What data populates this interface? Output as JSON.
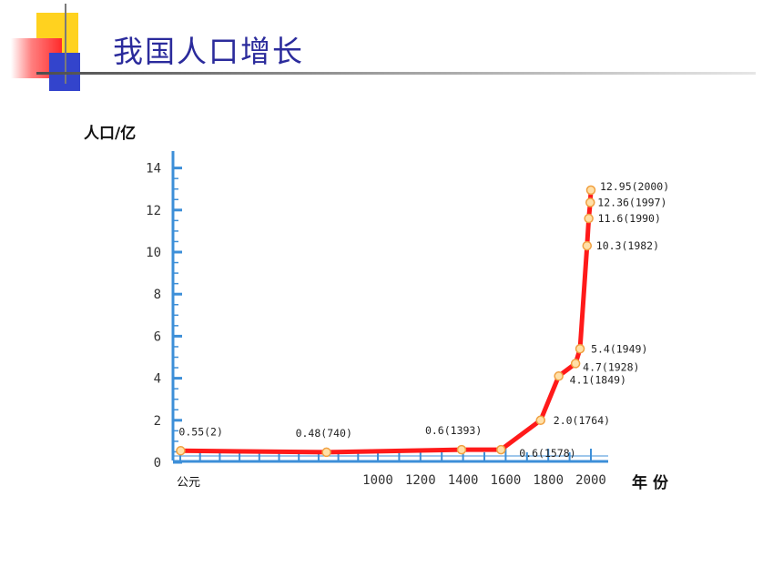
{
  "slide": {
    "title": "我国人口增长",
    "colors": {
      "title": "#2b2b9c",
      "yellow": "#ffd21f",
      "red": "#ff4040",
      "blue": "#3344cc"
    }
  },
  "chart_data": {
    "type": "line",
    "xlabel": "年份",
    "ylabel": "人口/亿",
    "x_origin_label": "公元",
    "xticks": [
      1000,
      1200,
      1400,
      1600,
      1800,
      2000
    ],
    "yticks": [
      0,
      2,
      4,
      6,
      8,
      10,
      12,
      14
    ],
    "ylim": [
      0,
      14
    ],
    "grid": false,
    "line_color": "#ff1a1a",
    "axis_color": "#3d8fd8",
    "points": [
      {
        "x": 2,
        "y": 0.55,
        "label": "0.55(2)"
      },
      {
        "x": 740,
        "y": 0.48,
        "label": "0.48(740)"
      },
      {
        "x": 1393,
        "y": 0.6,
        "label": "0.6(1393)"
      },
      {
        "x": 1578,
        "y": 0.6,
        "label": "0.6(1578)"
      },
      {
        "x": 1764,
        "y": 2.0,
        "label": "2.0(1764)"
      },
      {
        "x": 1849,
        "y": 4.1,
        "label": "4.1(1849)"
      },
      {
        "x": 1928,
        "y": 4.7,
        "label": "4.7(1928)"
      },
      {
        "x": 1949,
        "y": 5.4,
        "label": "5.4(1949)"
      },
      {
        "x": 1982,
        "y": 10.3,
        "label": "10.3(1982)"
      },
      {
        "x": 1990,
        "y": 11.6,
        "label": "11.6(1990)"
      },
      {
        "x": 1997,
        "y": 12.36,
        "label": "12.36(1997)"
      },
      {
        "x": 2000,
        "y": 12.95,
        "label": "12.95(2000)"
      }
    ]
  }
}
